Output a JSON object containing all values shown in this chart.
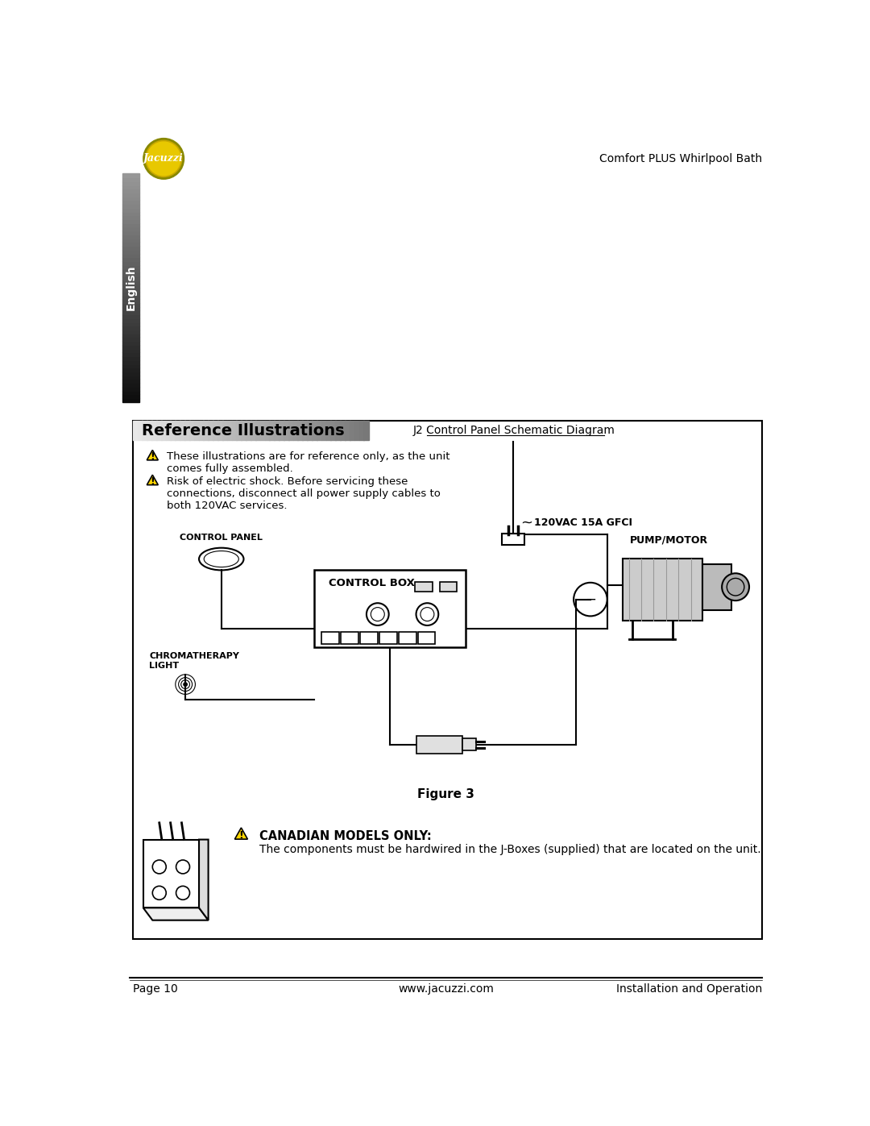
{
  "page_title_right": "Comfort PLUS Whirlpool Bath",
  "footer_left": "Page 10",
  "footer_center": "www.jacuzzi.com",
  "footer_right": "Installation and Operation",
  "section_title": "Reference Illustrations",
  "diagram_title": "J2 Control Panel Schematic Diagram",
  "warning1": "These illustrations are for reference only, as the unit\ncomes fully assembled.",
  "warning2": "Risk of electric shock. Before servicing these\nconnections, disconnect all power supply cables to\nboth 120VAC services.",
  "label_120vac": "120VAC 15A GFCI",
  "label_pump": "PUMP/MOTOR",
  "label_control_panel": "CONTROL PANEL",
  "label_control_box": "CONTROL BOX",
  "label_chroma": "CHROMATHERAPY\nLIGHT",
  "figure_caption": "Figure 3",
  "canadian_title": "CANADIAN MODELS ONLY:",
  "canadian_text": "The components must be hardwired in the J-Boxes (supplied) that are located on the unit.",
  "bg_color": "#ffffff",
  "english_label": "English"
}
